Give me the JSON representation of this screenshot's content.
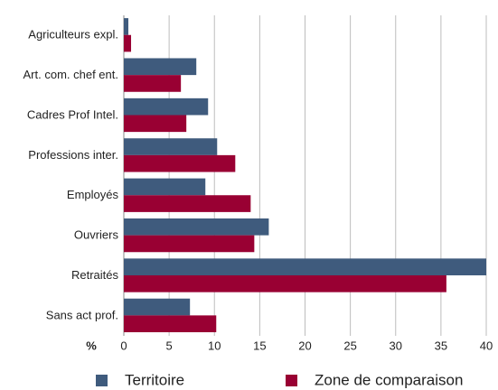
{
  "chart_data": {
    "type": "bar",
    "orientation": "horizontal",
    "x_label": "%",
    "categories": [
      "Agriculteurs expl.",
      "Art. com. chef ent.",
      "Cadres Prof Intel.",
      "Professions inter.",
      "Employés",
      "Ouvriers",
      "Retraités",
      "Sans act prof."
    ],
    "series": [
      {
        "name": "Territoire",
        "color": "#3f5b7d",
        "values": [
          0.5,
          8.0,
          9.3,
          10.3,
          9.0,
          16.0,
          40.0,
          7.3
        ]
      },
      {
        "name": "Zone de comparaison",
        "color": "#990033",
        "values": [
          0.8,
          6.3,
          6.9,
          12.3,
          14.0,
          14.4,
          35.6,
          10.2
        ]
      }
    ],
    "xlim": [
      0,
      40
    ],
    "xticks": [
      0,
      5,
      10,
      15,
      20,
      25,
      30,
      35,
      40
    ],
    "grid": true,
    "legend": "bottom"
  }
}
